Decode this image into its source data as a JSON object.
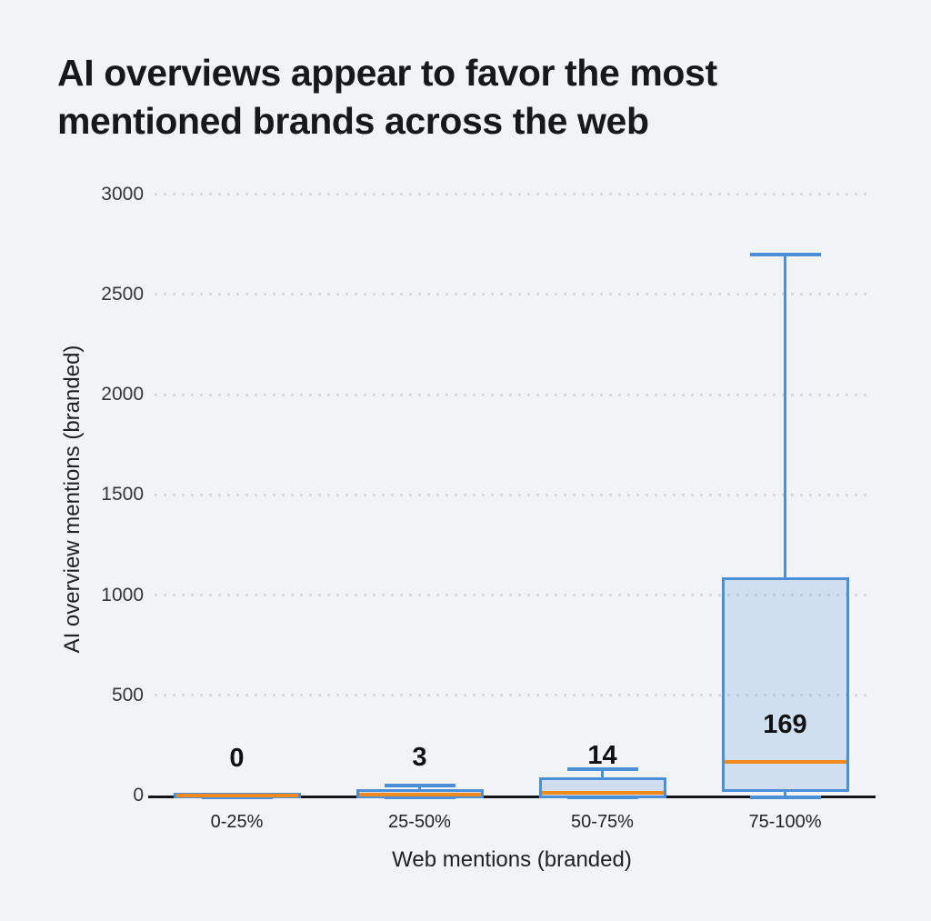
{
  "title": {
    "line1": "AI overviews appear to favor the most",
    "line2": "mentioned brands across the web"
  },
  "chart_data": {
    "type": "boxplot",
    "title": "AI overviews appear to favor the most mentioned brands across the web",
    "xlabel": "Web mentions (branded)",
    "ylabel": "AI overview mentions (branded)",
    "categories": [
      "0-25%",
      "25-50%",
      "50-75%",
      "75-100%"
    ],
    "yticks": [
      0,
      500,
      1000,
      1500,
      2000,
      2500,
      3000
    ],
    "ylim": [
      0,
      3000
    ],
    "grid": "horizontal-dotted",
    "legend": "none",
    "boxes": [
      {
        "category": "0-25%",
        "min": 0,
        "q1": 0,
        "median": 0,
        "q3": 0,
        "max": 0,
        "label": "0"
      },
      {
        "category": "25-50%",
        "min": 0,
        "q1": 0,
        "median": 3,
        "q3": 20,
        "max": 50,
        "label": "3"
      },
      {
        "category": "50-75%",
        "min": 0,
        "q1": 0,
        "median": 14,
        "q3": 75,
        "max": 130,
        "label": "14"
      },
      {
        "category": "75-100%",
        "min": 0,
        "q1": 30,
        "median": 169,
        "q3": 1075,
        "max": 2700,
        "label": "169"
      }
    ]
  },
  "colors": {
    "background": "#f2f3f5",
    "box_border": "#4a90d8",
    "box_fill": "rgba(74,144,216,0.2)",
    "median": "#f2891d",
    "axis": "#141414",
    "grid_dot": "#d8d9dd",
    "title_text": "#17181b",
    "tick_text": "#34353a"
  }
}
